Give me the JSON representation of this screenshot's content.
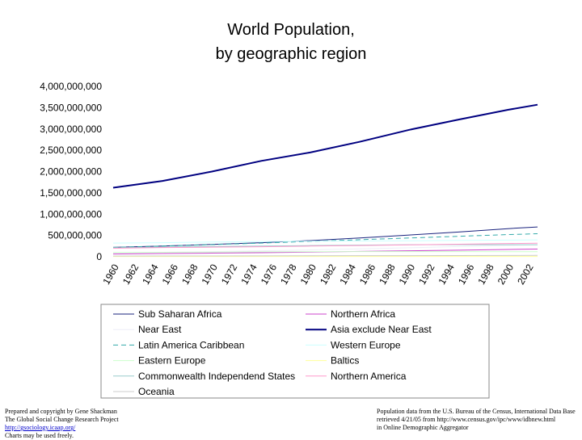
{
  "chart_data": {
    "type": "line",
    "title": [
      "World Population,",
      "by geographic region"
    ],
    "x": [
      1960,
      1965,
      1970,
      1975,
      1980,
      1985,
      1990,
      1995,
      2000,
      2003
    ],
    "xlim": [
      1960,
      2003
    ],
    "xticks": [
      1960,
      1962,
      1964,
      1966,
      1968,
      1970,
      1972,
      1974,
      1976,
      1978,
      1980,
      1982,
      1984,
      1986,
      1988,
      1990,
      1992,
      1994,
      1996,
      1998,
      2000,
      2002
    ],
    "ylim": [
      0,
      4000000000
    ],
    "yticks": [
      0,
      {
        "value": 500000000,
        "label": "500,000,000"
      },
      {
        "value": 1000000000,
        "label": "1,000,000,000"
      },
      {
        "value": 1500000000,
        "label": "1,500,000,000"
      },
      {
        "value": 2000000000,
        "label": "2,000,000,000"
      },
      {
        "value": 2500000000,
        "label": "2,500,000,000"
      },
      {
        "value": 3000000000,
        "label": "3,000,000,000"
      },
      {
        "value": 3500000000,
        "label": "3,500,000,000"
      },
      {
        "value": 4000000000,
        "label": "4,000,000,000"
      }
    ],
    "grid": false,
    "legend": "bottom",
    "series": [
      {
        "name": "Sub Saharan Africa",
        "color": "#1a237e",
        "values": [
          220000000,
          250000000,
          290000000,
          330000000,
          380000000,
          440000000,
          510000000,
          580000000,
          660000000,
          700000000
        ]
      },
      {
        "name": "Northern Africa",
        "color": "#cc44cc",
        "values": [
          65000000,
          75000000,
          85000000,
          95000000,
          110000000,
          125000000,
          140000000,
          155000000,
          170000000,
          180000000
        ]
      },
      {
        "name": "Near East",
        "color": "#eeeef8",
        "values": [
          90000000,
          105000000,
          120000000,
          140000000,
          160000000,
          185000000,
          210000000,
          240000000,
          265000000,
          280000000
        ]
      },
      {
        "name": "Asia exclude Near East",
        "color": "#000080",
        "width": 2,
        "values": [
          1620000000,
          1780000000,
          2000000000,
          2250000000,
          2450000000,
          2700000000,
          2980000000,
          3220000000,
          3450000000,
          3570000000
        ]
      },
      {
        "name": "Latin America Caribbean",
        "color": "#33aaaa",
        "dash": true,
        "values": [
          220000000,
          250000000,
          285000000,
          320000000,
          360000000,
          400000000,
          440000000,
          480000000,
          520000000,
          540000000
        ]
      },
      {
        "name": "Western Europe",
        "color": "#ccffff",
        "values": [
          320000000,
          330000000,
          345000000,
          355000000,
          365000000,
          370000000,
          375000000,
          385000000,
          390000000,
          395000000
        ]
      },
      {
        "name": "Eastern Europe",
        "color": "#ccffcc",
        "values": [
          100000000,
          105000000,
          110000000,
          115000000,
          118000000,
          120000000,
          121000000,
          120000000,
          119000000,
          118000000
        ]
      },
      {
        "name": "Baltics",
        "color": "#ffff99",
        "values": [
          6000000,
          6500000,
          7000000,
          7300000,
          7600000,
          7900000,
          8000000,
          7600000,
          7300000,
          7200000
        ]
      },
      {
        "name": "Commonwealth Independend States",
        "color": "#99cccc",
        "values": [
          210000000,
          225000000,
          240000000,
          250000000,
          262000000,
          272000000,
          282000000,
          285000000,
          283000000,
          281000000
        ]
      },
      {
        "name": "Northern America",
        "color": "#ff99cc",
        "values": [
          200000000,
          215000000,
          225000000,
          235000000,
          250000000,
          262000000,
          280000000,
          295000000,
          310000000,
          318000000
        ]
      },
      {
        "name": "Oceania",
        "color": "#cccccc",
        "values": [
          16000000,
          18000000,
          19500000,
          21000000,
          23000000,
          25000000,
          27000000,
          29000000,
          31000000,
          32000000
        ]
      }
    ]
  },
  "footer": {
    "left": [
      "Prepared and copyright by Gene Shackman",
      "The Global Social Change Research Project",
      "http://gsociology.icaap.org/",
      "Charts may be used freely."
    ],
    "right": [
      "Population data from the U.S. Bureau of the Census, International Data Base",
      "retrieved 4/21/05 from http://www.census.gov/ipc/www/idbnew.html",
      "in Online Demographic Aggregator"
    ]
  }
}
